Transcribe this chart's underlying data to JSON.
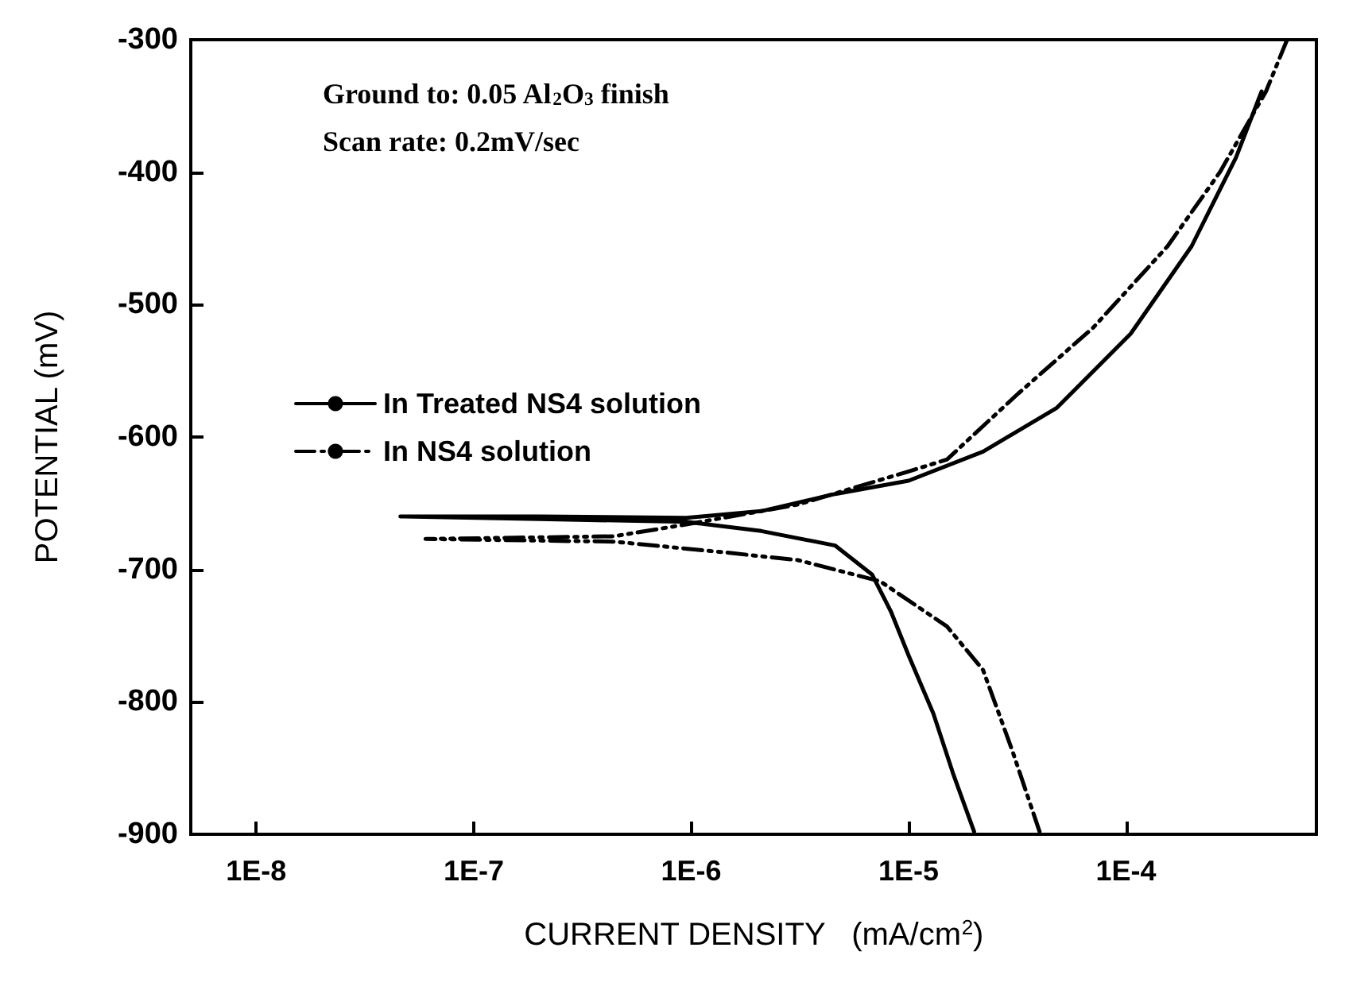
{
  "chart_data": {
    "type": "line",
    "xlabel": "CURRENT DENSITY   (mA/cm$^{2}$)",
    "ylabel": "POTENTIAL (mV)",
    "annotations": [
      "Ground to: 0.05 Al$_{2}$O$_{3}$ finish",
      "Scan rate: 0.2mV/sec"
    ],
    "log": "x",
    "grid": false,
    "legend": "top left",
    "marker": "none",
    "xlim": [
      5e-09,
      0.00075
    ],
    "xticks": [
      {
        "value": 1e-08,
        "label": "1E-8"
      },
      {
        "value": 1e-07,
        "label": "1E-7"
      },
      {
        "value": 1e-06,
        "label": "1E-6"
      },
      {
        "value": 1e-05,
        "label": "1E-5"
      },
      {
        "value": 0.0001,
        "label": "1E-4"
      }
    ],
    "ylim": [
      -900,
      -300
    ],
    "yticks": [
      -900,
      -800,
      -700,
      -600,
      -500,
      -400,
      -300
    ],
    "series": [
      {
        "name": "In Treated NS4 solution",
        "color": "#000000",
        "line_style": "solid",
        "x": [
          2e-05,
          1.6e-05,
          1.3e-05,
          1e-05,
          8.3e-06,
          6.8e-06,
          4.6e-06,
          2.1e-06,
          9.5e-07,
          2e-07,
          4.6e-08,
          2e-07,
          9.5e-07,
          2.1e-06,
          4.6e-06,
          1e-05,
          2.2e-05,
          4.8e-05,
          0.000105,
          0.0002,
          0.00032,
          0.00042
        ],
        "values": [
          -898,
          -854,
          -809,
          -765,
          -732,
          -704,
          -682,
          -671,
          -664,
          -662,
          -660,
          -660,
          -661,
          -656,
          -643,
          -633,
          -611,
          -578,
          -522,
          -456,
          -389,
          -339
        ]
      },
      {
        "name": "In NS4 solution",
        "color": "#000000",
        "line_style": "dashed",
        "x": [
          4e-05,
          3e-05,
          2.2e-05,
          1.5e-05,
          7.4e-06,
          3.1e-06,
          1.4e-06,
          4.4e-07,
          6e-08,
          4.4e-07,
          9.5e-07,
          3.1e-06,
          1e-05,
          1.5e-05,
          3.2e-05,
          7.1e-05,
          0.000155,
          0.00027,
          0.00044,
          0.00055
        ],
        "values": [
          -898,
          -837,
          -776,
          -743,
          -709,
          -693,
          -687,
          -679,
          -677,
          -675,
          -666,
          -651,
          -626,
          -617,
          -567,
          -517,
          -456,
          -400,
          -339,
          -300
        ]
      }
    ]
  }
}
